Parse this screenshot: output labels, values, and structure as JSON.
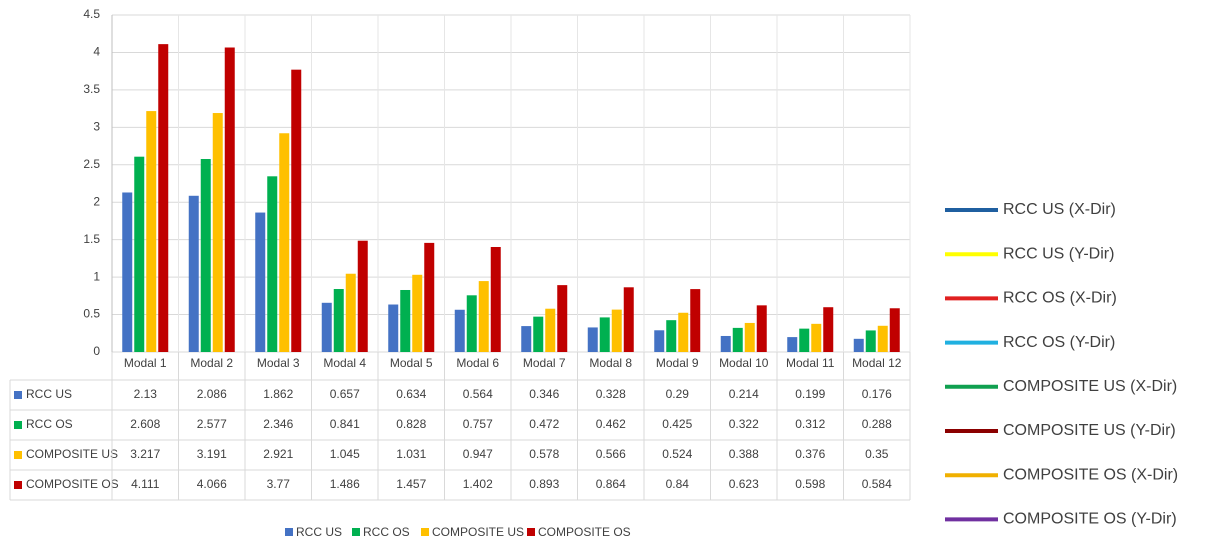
{
  "chart_data": {
    "type": "bar",
    "categories": [
      "Modal 1",
      "Modal 2",
      "Modal 3",
      "Modal 4",
      "Modal 5",
      "Modal 6",
      "Modal 7",
      "Modal 8",
      "Modal 9",
      "Modal 10",
      "Modal 11",
      "Modal 12"
    ],
    "series": [
      {
        "name": "RCC US",
        "color": "#4472c4",
        "values": [
          2.13,
          2.086,
          1.862,
          0.657,
          0.634,
          0.564,
          0.346,
          0.328,
          0.29,
          0.214,
          0.199,
          0.176
        ]
      },
      {
        "name": "RCC OS",
        "color": "#00b050",
        "values": [
          2.608,
          2.577,
          2.346,
          0.841,
          0.828,
          0.757,
          0.472,
          0.462,
          0.425,
          0.322,
          0.312,
          0.288
        ]
      },
      {
        "name": "COMPOSITE US",
        "color": "#ffc000",
        "values": [
          3.217,
          3.191,
          2.921,
          1.045,
          1.031,
          0.947,
          0.578,
          0.566,
          0.524,
          0.388,
          0.376,
          0.35
        ]
      },
      {
        "name": "COMPOSITE OS",
        "color": "#c00000",
        "values": [
          4.111,
          4.066,
          3.77,
          1.486,
          1.457,
          1.402,
          0.893,
          0.864,
          0.84,
          0.623,
          0.598,
          0.584
        ]
      }
    ],
    "ylim": [
      0,
      4.5
    ],
    "yticks": [
      0,
      0.5,
      1,
      1.5,
      2,
      2.5,
      3,
      3.5,
      4,
      4.5
    ],
    "grid": true,
    "legend": "bottom",
    "data_table": true
  },
  "side_legend": {
    "items": [
      {
        "label": "RCC US (X-Dir)",
        "color": "#1f5fa0"
      },
      {
        "label": "RCC US (Y-Dir)",
        "color": "#ffff00"
      },
      {
        "label": "RCC OS (X-Dir)",
        "color": "#e02020"
      },
      {
        "label": "RCC OS (Y-Dir)",
        "color": "#20b0e0"
      },
      {
        "label": "COMPOSITE US (X-Dir)",
        "color": "#10a050"
      },
      {
        "label": "COMPOSITE US (Y-Dir)",
        "color": "#8b0000"
      },
      {
        "label": "COMPOSITE OS (X-Dir)",
        "color": "#f0b000"
      },
      {
        "label": "COMPOSITE OS (Y-Dir)",
        "color": "#7030a0"
      }
    ]
  }
}
